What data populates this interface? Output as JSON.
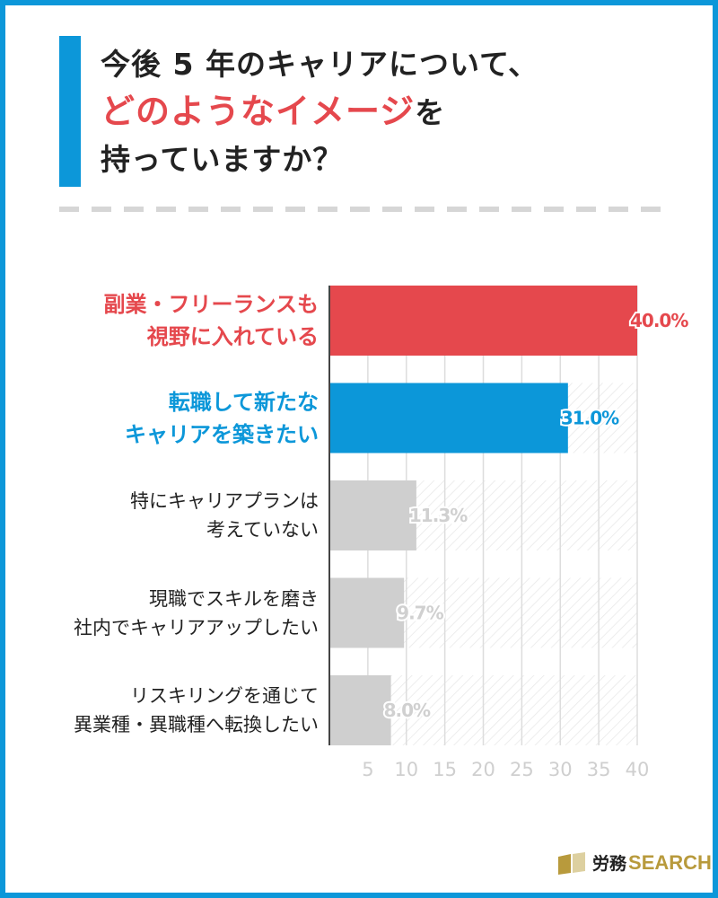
{
  "title": {
    "line1": "今後 5 年のキャリアについて、",
    "line2_highlight": "どのようなイメージ",
    "line2_rest": "を",
    "line3": "持っていますか？"
  },
  "chart_data": {
    "type": "bar",
    "orientation": "horizontal",
    "categories": [
      {
        "lines": [
          "副業・フリーランスも",
          "視野に入れている"
        ],
        "color": "#e5484d",
        "label_color": "#e5484d",
        "bold": true
      },
      {
        "lines": [
          "転職して新たな",
          "キャリアを築きたい"
        ],
        "color": "#0c97d9",
        "label_color": "#0c97d9",
        "bold": true
      },
      {
        "lines": [
          "特にキャリアプランは",
          "考えていない"
        ],
        "color": "#cfcfcf",
        "label_color": "#222222",
        "bold": false
      },
      {
        "lines": [
          "現職でスキルを磨き",
          "社内でキャリアアップしたい"
        ],
        "color": "#cfcfcf",
        "label_color": "#222222",
        "bold": false
      },
      {
        "lines": [
          "リスキリングを通じて",
          "異業種・異職種へ転換したい"
        ],
        "color": "#cfcfcf",
        "label_color": "#222222",
        "bold": false
      }
    ],
    "values": [
      40.0,
      31.0,
      11.3,
      9.7,
      8.0
    ],
    "value_labels": [
      "40.0%",
      "31.0%",
      "11.3%",
      "9.7%",
      "8.0%"
    ],
    "xlim": [
      0,
      40
    ],
    "xticks": [
      "5",
      "10",
      "15",
      "20",
      "25",
      "30",
      "35",
      "40"
    ],
    "grid": true
  },
  "logo": {
    "title": "労務",
    "name": "SEARCH"
  }
}
